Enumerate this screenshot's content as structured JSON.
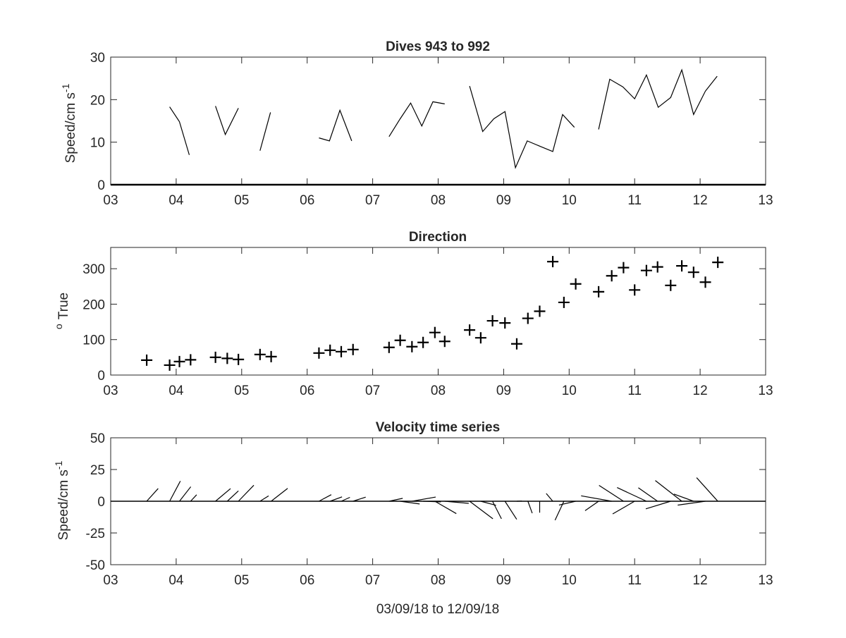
{
  "chart_data": [
    {
      "type": "line",
      "title": "Dives 943 to 992",
      "ylabel": "Speed/cm s",
      "ylabel_exponent": "-1",
      "xlim": [
        3,
        13
      ],
      "ylim": [
        0,
        30
      ],
      "xticks": [
        "03",
        "04",
        "05",
        "06",
        "07",
        "08",
        "09",
        "10",
        "11",
        "12",
        "13"
      ],
      "yticks": [
        "0",
        "10",
        "20",
        "30"
      ],
      "series": [
        {
          "x": [
            3.9,
            4.05,
            4.2
          ],
          "y": [
            18.3,
            14.8,
            7.0
          ]
        },
        {
          "x": [
            4.6,
            4.75,
            4.95
          ],
          "y": [
            18.5,
            11.8,
            18.0
          ]
        },
        {
          "x": [
            5.28,
            5.44
          ],
          "y": [
            8.0,
            17.0
          ]
        },
        {
          "x": [
            6.18,
            6.34,
            6.5,
            6.68
          ],
          "y": [
            11.0,
            10.3,
            17.5,
            10.3
          ]
        },
        {
          "x": [
            7.25,
            7.42,
            7.58,
            7.75,
            7.92,
            8.1
          ],
          "y": [
            11.3,
            15.5,
            19.2,
            13.8,
            19.5,
            19.0
          ]
        },
        {
          "x": [
            8.48,
            8.68,
            8.85,
            9.02,
            9.18,
            9.36,
            9.56,
            9.75,
            9.9,
            10.08
          ],
          "y": [
            23.2,
            12.5,
            15.5,
            17.2,
            4.0,
            10.3,
            9.0,
            7.8,
            16.5,
            13.5
          ]
        },
        {
          "x": [
            10.45,
            10.62,
            10.82,
            11.0,
            11.18,
            11.36,
            11.55,
            11.72,
            11.9,
            12.08,
            12.26
          ],
          "y": [
            13.0,
            24.8,
            23.0,
            20.2,
            25.8,
            18.2,
            20.5,
            27.0,
            16.5,
            22.0,
            25.5
          ]
        }
      ]
    },
    {
      "type": "scatter",
      "title": "Direction",
      "ylabel": "True",
      "ylabel_prefix": "o",
      "xlim": [
        3,
        13
      ],
      "ylim": [
        0,
        360
      ],
      "xticks": [
        "03",
        "04",
        "05",
        "06",
        "07",
        "08",
        "09",
        "10",
        "11",
        "12",
        "13"
      ],
      "yticks": [
        "0",
        "100",
        "200",
        "300"
      ],
      "marker": "+",
      "x": [
        3.55,
        3.9,
        4.05,
        4.22,
        4.6,
        4.78,
        4.95,
        5.28,
        5.45,
        6.18,
        6.35,
        6.52,
        6.7,
        7.25,
        7.42,
        7.6,
        7.77,
        7.95,
        8.1,
        8.48,
        8.65,
        8.83,
        9.02,
        9.2,
        9.37,
        9.55,
        9.75,
        9.92,
        10.1,
        10.45,
        10.65,
        10.83,
        11.0,
        11.18,
        11.35,
        11.55,
        11.72,
        11.9,
        12.08,
        12.27
      ],
      "y": [
        42,
        28,
        38,
        43,
        50,
        47,
        44,
        58,
        52,
        62,
        70,
        66,
        72,
        78,
        98,
        80,
        92,
        120,
        95,
        127,
        105,
        153,
        147,
        88,
        160,
        180,
        320,
        205,
        257,
        235,
        280,
        303,
        240,
        295,
        305,
        253,
        308,
        290,
        262,
        318
      ]
    },
    {
      "type": "quiver",
      "title": "Velocity time series",
      "ylabel": "Speed/cm s",
      "ylabel_exponent": "-1",
      "xlabel": "03/09/18 to 12/09/18",
      "xlim": [
        3,
        13
      ],
      "ylim": [
        -50,
        50
      ],
      "xticks": [
        "03",
        "04",
        "05",
        "06",
        "07",
        "08",
        "09",
        "10",
        "11",
        "12",
        "13"
      ],
      "yticks": [
        "50",
        "25",
        "0",
        "-25",
        "-50"
      ],
      "sticks": [
        {
          "x": 3.55,
          "speed": 13.5,
          "dir": 42
        },
        {
          "x": 3.9,
          "speed": 18.0,
          "dir": 28
        },
        {
          "x": 4.05,
          "speed": 14.5,
          "dir": 38
        },
        {
          "x": 4.22,
          "speed": 7.0,
          "dir": 43
        },
        {
          "x": 4.6,
          "speed": 15.5,
          "dir": 50
        },
        {
          "x": 4.78,
          "speed": 12.0,
          "dir": 47
        },
        {
          "x": 4.95,
          "speed": 17.5,
          "dir": 44
        },
        {
          "x": 5.28,
          "speed": 8.0,
          "dir": 58
        },
        {
          "x": 5.45,
          "speed": 16.5,
          "dir": 52
        },
        {
          "x": 6.18,
          "speed": 11.0,
          "dir": 62
        },
        {
          "x": 6.35,
          "speed": 10.0,
          "dir": 70
        },
        {
          "x": 6.52,
          "speed": 7.5,
          "dir": 66
        },
        {
          "x": 6.7,
          "speed": 10.5,
          "dir": 72
        },
        {
          "x": 7.25,
          "speed": 11.0,
          "dir": 78
        },
        {
          "x": 7.42,
          "speed": 15.5,
          "dir": 98
        },
        {
          "x": 7.6,
          "speed": 19.0,
          "dir": 80
        },
        {
          "x": 7.77,
          "speed": 14.0,
          "dir": 92
        },
        {
          "x": 7.95,
          "speed": 19.5,
          "dir": 120
        },
        {
          "x": 8.1,
          "speed": 19.0,
          "dir": 95
        },
        {
          "x": 8.48,
          "speed": 23.0,
          "dir": 127
        },
        {
          "x": 8.65,
          "speed": 12.5,
          "dir": 105
        },
        {
          "x": 8.83,
          "speed": 15.5,
          "dir": 153
        },
        {
          "x": 9.02,
          "speed": 17.0,
          "dir": 147
        },
        {
          "x": 9.2,
          "speed": 4.0,
          "dir": 88
        },
        {
          "x": 9.37,
          "speed": 10.0,
          "dir": 160
        },
        {
          "x": 9.55,
          "speed": 9.0,
          "dir": 180
        },
        {
          "x": 9.75,
          "speed": 8.0,
          "dir": 320
        },
        {
          "x": 9.92,
          "speed": 16.5,
          "dir": 205
        },
        {
          "x": 10.1,
          "speed": 13.5,
          "dir": 257
        },
        {
          "x": 10.45,
          "speed": 13.0,
          "dir": 235
        },
        {
          "x": 10.65,
          "speed": 24.5,
          "dir": 280
        },
        {
          "x": 10.83,
          "speed": 23.0,
          "dir": 303
        },
        {
          "x": 11.0,
          "speed": 20.0,
          "dir": 240
        },
        {
          "x": 11.18,
          "speed": 25.5,
          "dir": 295
        },
        {
          "x": 11.35,
          "speed": 18.5,
          "dir": 305
        },
        {
          "x": 11.55,
          "speed": 20.5,
          "dir": 253
        },
        {
          "x": 11.72,
          "speed": 26.5,
          "dir": 308
        },
        {
          "x": 11.9,
          "speed": 16.5,
          "dir": 290
        },
        {
          "x": 12.08,
          "speed": 22.0,
          "dir": 262
        },
        {
          "x": 12.27,
          "speed": 25.0,
          "dir": 318
        }
      ]
    }
  ]
}
